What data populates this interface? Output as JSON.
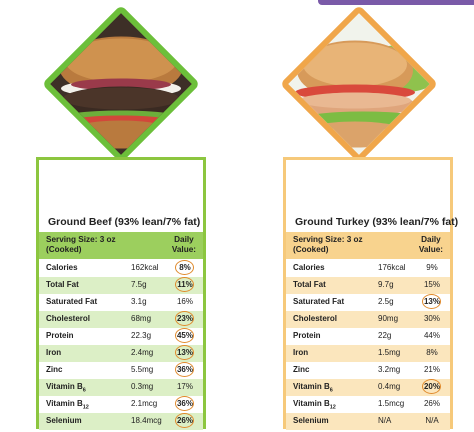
{
  "cards": [
    {
      "id": "beef",
      "title": "Ground Beef (93% lean/7% fat)",
      "serving_line1": "Serving Size: 3 oz",
      "serving_line2": "(Cooked)",
      "daily_line1": "Daily",
      "daily_line2": "Value:",
      "accent": "#8cc63f",
      "rows": [
        {
          "name": "Calories",
          "amount": "162kcal",
          "dv": "8%",
          "circled": true
        },
        {
          "name": "Total Fat",
          "amount": "7.5g",
          "dv": "11%",
          "circled": true
        },
        {
          "name": "Saturated Fat",
          "amount": "3.1g",
          "dv": "16%",
          "circled": false
        },
        {
          "name": "Cholesterol",
          "amount": "68mg",
          "dv": "23%",
          "circled": true
        },
        {
          "name": "Protein",
          "amount": "22.3g",
          "dv": "45%",
          "circled": true
        },
        {
          "name": "Iron",
          "amount": "2.4mg",
          "dv": "13%",
          "circled": true
        },
        {
          "name": "Zinc",
          "amount": "5.5mg",
          "dv": "36%",
          "circled": true
        },
        {
          "name": "Vitamin B",
          "sub": "6",
          "amount": "0.3mg",
          "dv": "17%",
          "circled": false
        },
        {
          "name": "Vitamin B",
          "sub": "12",
          "amount": "2.1mcg",
          "dv": "36%",
          "circled": true
        },
        {
          "name": "Selenium",
          "amount": "18.4mcg",
          "dv": "26%",
          "circled": true
        }
      ]
    },
    {
      "id": "turkey",
      "title": "Ground Turkey (93% lean/7% fat)",
      "serving_line1": "Serving Size: 3 oz",
      "serving_line2": "(Cooked)",
      "daily_line1": "Daily",
      "daily_line2": "Value:",
      "accent": "#f6c97a",
      "rows": [
        {
          "name": "Calories",
          "amount": "176kcal",
          "dv": "9%",
          "circled": false
        },
        {
          "name": "Total Fat",
          "amount": "9.7g",
          "dv": "15%",
          "circled": false
        },
        {
          "name": "Saturated Fat",
          "amount": "2.5g",
          "dv": "13%",
          "circled": true
        },
        {
          "name": "Cholesterol",
          "amount": "90mg",
          "dv": "30%",
          "circled": false
        },
        {
          "name": "Protein",
          "amount": "22g",
          "dv": "44%",
          "circled": false
        },
        {
          "name": "Iron",
          "amount": "1.5mg",
          "dv": "8%",
          "circled": false
        },
        {
          "name": "Zinc",
          "amount": "3.2mg",
          "dv": "21%",
          "circled": false
        },
        {
          "name": "Vitamin B",
          "sub": "6",
          "amount": "0.4mg",
          "dv": "20%",
          "circled": true
        },
        {
          "name": "Vitamin B",
          "sub": "12",
          "amount": "1.5mcg",
          "dv": "26%",
          "circled": false
        },
        {
          "name": "Selenium",
          "amount": "N/A",
          "dv": "N/A",
          "circled": false
        }
      ]
    }
  ]
}
